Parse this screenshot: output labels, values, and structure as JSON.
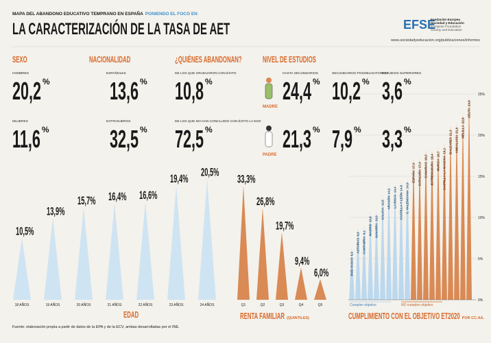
{
  "header": {
    "kicker": "MAPA DEL ABANDONO EDUCATIVO TEMPRANO EN ESPAÑA",
    "kicker_highlight": "PONIENDO EL FOCO EN",
    "title": "LA CARACTERIZACIÓN DE LA TASA DE AET",
    "logo": "EFSE",
    "org": [
      "Fundación Europea",
      "Sociedad y Educación",
      "European Foundation",
      "Society and Education"
    ],
    "url": "www.sociedadyeducacion.org/publicaciones/informes"
  },
  "unit": "%",
  "sections": [
    {
      "title": "SEXO",
      "items": [
        {
          "label": "HOMBRES",
          "value": "20,2"
        },
        {
          "label": "MUJERES",
          "value": "11,6"
        }
      ]
    },
    {
      "title": "NACIONALIDAD",
      "items": [
        {
          "label": "ESPAÑOLES",
          "value": "13,6"
        },
        {
          "label": "EXTRANJEROS",
          "value": "32,5"
        }
      ]
    },
    {
      "title": "¿QUIÉNES ABANDONAN?",
      "items": [
        {
          "label": "DE LOS QUE GRADUARON CON ÉXITO",
          "value": "10,8"
        },
        {
          "label": "DE LOS QUE NO HAN CONCLUIDO CON ÉXITO LA ESO",
          "value": "72,5"
        }
      ]
    }
  ],
  "nivel_estudios": {
    "title": "NIVEL DE ESTUDIOS",
    "columns": [
      "HASTA SECUNDARIOS",
      "SECUNDARIOS POSOBLIGATORIOS",
      "ESTUDIOS SUPERIORES"
    ],
    "rows": [
      {
        "label": "MADRE",
        "values": [
          "24,4",
          "10,2",
          "3,6"
        ]
      },
      {
        "label": "PADRE",
        "values": [
          "21,3",
          "7,9",
          "3,3"
        ]
      }
    ]
  },
  "chart_data": [
    {
      "type": "triangle",
      "title": "EDAD",
      "color": "#cfe4f3",
      "categories": [
        "18 AÑOS",
        "19 AÑOS",
        "20 AÑOS",
        "21 AÑOS",
        "22 AÑOS",
        "23 AÑOS",
        "24 AÑOS"
      ],
      "values": [
        10.5,
        13.9,
        15.7,
        16.4,
        16.6,
        19.4,
        20.5
      ],
      "value_labels": [
        "10,5%",
        "13,9%",
        "15,7%",
        "16,4%",
        "16,6%",
        "19,4%",
        "20,5%"
      ]
    },
    {
      "type": "triangle",
      "title": "RENTA FAMILIAR",
      "subtitle": "(QUINTILES)",
      "color": "#d98a55",
      "categories": [
        "Q1",
        "Q2",
        "Q3",
        "Q4",
        "Q5"
      ],
      "values": [
        33.3,
        26.8,
        19.7,
        9.4,
        6.0
      ],
      "value_labels": [
        "33,3%",
        "26,8%",
        "19,7%",
        "9,4%",
        "6,0%"
      ]
    },
    {
      "type": "spike",
      "title": "CUMPLIMIENTO CON EL OBJETIVO ET2020",
      "subtitle": "POR CC.AA.",
      "categories": [
        "PAÍS VASCO",
        "ASTURIAS",
        "CANTABRIA",
        "MADRID",
        "NAVARRA",
        "GALICIA",
        "ARAGÓN",
        "LA RIOJA",
        "CASTILLA Y LEÓN",
        "C. VALENCIANA",
        "ESPAÑA",
        "CATALUÑA",
        "CANARIAS",
        "EXTREMADURA",
        "MURCIA",
        "CASTILLA-LA MANCHA",
        "BALEARES",
        "ANDALUCÍA",
        "MELILLA",
        "CEUTA"
      ],
      "series": [
        {
          "name": "Cumplen objetivo",
          "color": "#bcd8ee",
          "values": [
            6.5,
            8.9,
            9.1,
            10.8,
            10.9,
            12.8,
            14.2,
            14.4,
            14.6,
            14.9,
            null,
            null,
            null,
            null,
            null,
            null,
            null,
            null,
            null,
            null
          ],
          "value_labels": [
            "6,5",
            "8,9",
            "9,1",
            "10,8",
            "10,9",
            "12,8",
            "14,2",
            "14,4",
            "14,6",
            "14,9",
            null,
            null,
            null,
            null,
            null,
            null,
            null,
            null,
            null,
            null
          ]
        },
        {
          "name": "NO cumplen objetivo",
          "color": "#d98a55",
          "values": [
            null,
            null,
            null,
            null,
            null,
            null,
            null,
            null,
            null,
            null,
            17.3,
            17.4,
            18.3,
            18.4,
            18.7,
            19.1,
            21.3,
            21.6,
            22.8,
            24.9
          ],
          "value_labels": [
            null,
            null,
            null,
            null,
            null,
            null,
            null,
            null,
            null,
            null,
            "17,3",
            "17,4",
            "18,3",
            "18,4",
            "18,7",
            "19,1",
            "21,3",
            "21,6",
            "22,8",
            "24,9"
          ]
        }
      ],
      "ylim": [
        0,
        25
      ],
      "yticks": [
        {
          "value": 0,
          "label": "0%"
        },
        {
          "value": 5,
          "label": "5%"
        },
        {
          "value": 10,
          "label": "10%"
        },
        {
          "value": 15,
          "label": "15%"
        },
        {
          "value": 20,
          "label": "20%"
        },
        {
          "value": 25,
          "label": "25%"
        }
      ],
      "grid": true
    }
  ],
  "source": "Fuente: elaboración propia a partir de datos de la EPA y de la ECV, ambas desarrolladas por el INE."
}
